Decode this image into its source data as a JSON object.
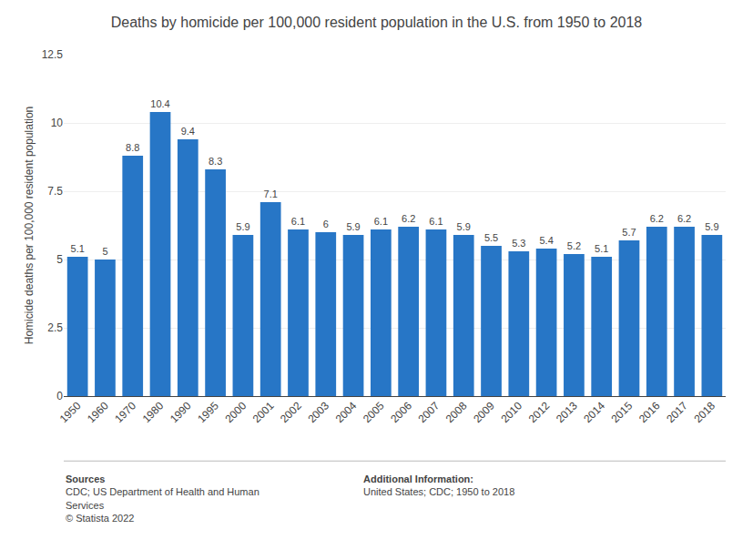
{
  "chart_data": {
    "type": "bar",
    "title": "Deaths by homicide per 100,000 resident population in the U.S. from 1950 to 2018",
    "ylabel": "Homicide deaths per 100,000 resident population",
    "categories": [
      "1950",
      "1960",
      "1970",
      "1980",
      "1990",
      "1995",
      "2000",
      "2001",
      "2002",
      "2003",
      "2004",
      "2005",
      "2006",
      "2007",
      "2008",
      "2009",
      "2010",
      "2012",
      "2013",
      "2014",
      "2015",
      "2016",
      "2017",
      "2018"
    ],
    "values": [
      5.1,
      5.0,
      8.8,
      10.4,
      9.4,
      8.3,
      5.9,
      7.1,
      6.1,
      6.0,
      5.9,
      6.1,
      6.2,
      6.1,
      5.9,
      5.5,
      5.3,
      5.4,
      5.2,
      5.1,
      5.7,
      6.2,
      6.2,
      5.9
    ],
    "value_labels": [
      "5.1",
      "5",
      "8.8",
      "10.4",
      "9.4",
      "8.3",
      "5.9",
      "7.1",
      "6.1",
      "6",
      "5.9",
      "6.1",
      "6.2",
      "6.1",
      "5.9",
      "5.5",
      "5.3",
      "5.4",
      "5.2",
      "5.1",
      "5.7",
      "6.2",
      "6.2",
      "5.9"
    ],
    "color": "#2776C6",
    "ylim": [
      0,
      12.5
    ],
    "yticks": [
      0,
      2.5,
      5,
      7.5,
      10,
      12.5
    ],
    "grid": true,
    "data_labels": true,
    "annotations": [
      "Sources\nCDC; US Department of Health and Human\nServices\n© Statista 2022",
      "Additional Information:\nUnited States; CDC; 1950 to 2018"
    ]
  }
}
